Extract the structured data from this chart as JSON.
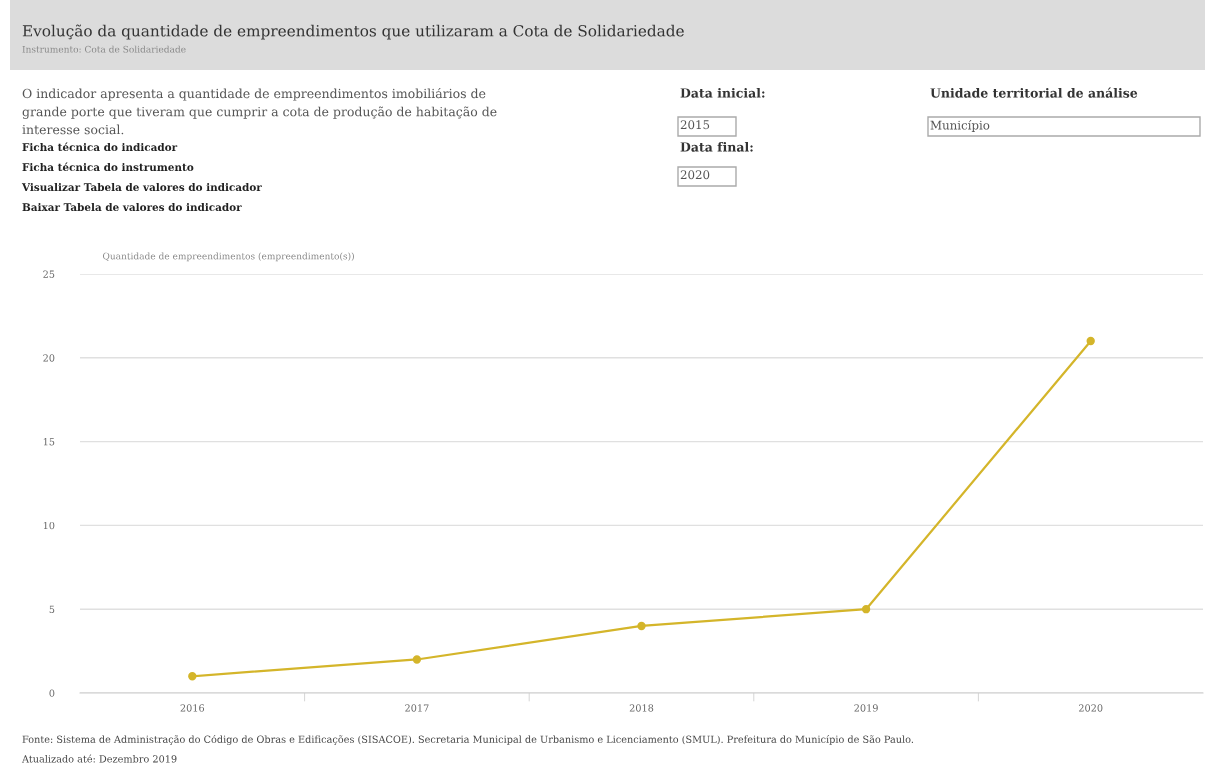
{
  "chart_data": {
    "type": "line",
    "title": "Evolução da quantidade de empreendimentos que utilizaram a Cota de Solidariedade",
    "subtitle": "Instrumento: Cota de Solidariedade",
    "ylabel": "Quantidade de empreendimentos (empreendimento(s))",
    "categories": [
      "2016",
      "2017",
      "2018",
      "2019",
      "2020"
    ],
    "series": [
      {
        "color": "#d4b52a",
        "values": [
          1,
          2,
          4,
          5,
          21
        ]
      }
    ],
    "ylim": [
      0,
      25
    ],
    "yticks": [
      0,
      5,
      10,
      15,
      20,
      25
    ],
    "grid": "y",
    "legend": false,
    "marker": "circle",
    "line_style": "solid",
    "annotations": [
      "O indicador apresenta a quantidade de empreendimentos imobiliários de\ngrande porte que tiveram que cumprir a cota de produção de habitação de\ninteresse social.",
      "Ficha técnica do indicador",
      "Ficha técnica do instrumento",
      "Visualizar Tabela de valores do indicador",
      "Baixar Tabela de valores do indicador",
      "Data inicial:",
      "2015",
      "Data final:",
      "2020",
      "Unidade territorial de análise",
      "Município",
      "Fonte: Sistema de Administração do Código de Obras e Edificações (SISACOE). Secretaria Municipal de Urbanismo e Licenciamento (SMUL). Prefeitura do Município de São Paulo.",
      "Atualizado até: Dezembro 2019"
    ]
  }
}
